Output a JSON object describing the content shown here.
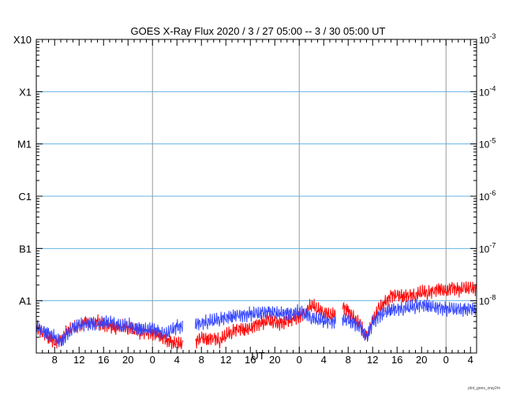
{
  "chart_data": {
    "type": "line",
    "title": "GOES X-Ray Flux   2020 / 3 / 27   05:00 --  3 / 30   05:00   UT",
    "xlabel": "UT",
    "x_tick_labels": [
      "8",
      "12",
      "16",
      "20",
      "0",
      "4",
      "8",
      "12",
      "16",
      "20",
      "0",
      "4",
      "8",
      "12",
      "16",
      "20",
      "0",
      "4"
    ],
    "x_tick_hours": [
      8,
      12,
      16,
      20,
      24,
      28,
      32,
      36,
      40,
      44,
      48,
      52,
      56,
      60,
      64,
      68,
      72,
      76
    ],
    "x_range_hours": [
      5,
      77
    ],
    "day_boundaries_hours": [
      24,
      48,
      72
    ],
    "y_scale": "log",
    "y_range": [
      1e-09,
      0.001
    ],
    "left_axis_labels": [
      {
        "label": "A1",
        "value": 1e-08
      },
      {
        "label": "B1",
        "value": 1e-07
      },
      {
        "label": "C1",
        "value": 1e-06
      },
      {
        "label": "M1",
        "value": 1e-05
      },
      {
        "label": "X1",
        "value": 0.0001
      },
      {
        "label": "X10",
        "value": 0.001
      }
    ],
    "right_axis_labels": [
      {
        "base": "10",
        "exp": "-8",
        "value": 1e-08
      },
      {
        "base": "10",
        "exp": "-7",
        "value": 1e-07
      },
      {
        "base": "10",
        "exp": "-6",
        "value": 1e-06
      },
      {
        "base": "10",
        "exp": "-5",
        "value": 1e-05
      },
      {
        "base": "10",
        "exp": "-4",
        "value": 0.0001
      },
      {
        "base": "10",
        "exp": "-3",
        "value": 0.001
      }
    ],
    "class_gridlines": [
      1e-08,
      1e-07,
      1e-06,
      1e-05,
      0.0001
    ],
    "series": [
      {
        "color": "#ff0000",
        "x_hours": [
          5,
          6,
          7,
          8,
          9,
          10,
          11,
          12,
          13,
          14,
          15,
          16,
          17,
          18,
          19,
          20,
          21,
          22,
          23,
          24,
          25,
          26,
          27,
          28,
          29,
          30,
          31,
          32,
          33,
          34,
          35,
          36,
          37,
          38,
          39,
          40,
          41,
          42,
          43,
          44,
          45,
          46,
          47,
          48,
          49,
          50,
          51,
          52,
          53,
          54,
          55,
          56,
          57,
          58,
          59,
          60,
          61,
          62,
          63,
          64,
          65,
          66,
          67,
          68,
          69,
          70,
          71,
          72,
          73,
          74,
          75,
          76
        ],
        "y": [
          3e-09,
          2.5e-09,
          2e-09,
          1.6e-09,
          1.8e-09,
          2.5e-09,
          3e-09,
          3.2e-09,
          3.8e-09,
          3.5e-09,
          4e-09,
          3.6e-09,
          3.2e-09,
          3e-09,
          3.4e-09,
          3e-09,
          2.8e-09,
          2.5e-09,
          2.6e-09,
          2.4e-09,
          2.2e-09,
          1.8e-09,
          1.6e-09,
          1.5e-09,
          null,
          null,
          1.6e-09,
          2e-09,
          1.8e-09,
          2e-09,
          1.7e-09,
          2.2e-09,
          2.6e-09,
          3e-09,
          2.8e-09,
          3e-09,
          3.5e-09,
          3.8e-09,
          4e-09,
          3.8e-09,
          3.6e-09,
          4e-09,
          4.5e-09,
          5e-09,
          6e-09,
          8.5e-09,
          7e-09,
          6e-09,
          5.5e-09,
          null,
          8e-09,
          6.5e-09,
          4.5e-09,
          3.5e-09,
          2e-09,
          4e-09,
          7e-09,
          9e-09,
          1.25e-08,
          1.3e-08,
          1.2e-08,
          1.3e-08,
          1.25e-08,
          1.5e-08,
          1.4e-08,
          1.6e-08,
          1.7e-08,
          1.5e-08,
          1.8e-08,
          1.6e-08,
          1.7e-08,
          1.7e-08
        ]
      },
      {
        "color": "#3344ff",
        "x_hours": [
          5,
          6,
          7,
          8,
          9,
          10,
          11,
          12,
          13,
          14,
          15,
          16,
          17,
          18,
          19,
          20,
          21,
          22,
          23,
          24,
          25,
          26,
          27,
          28,
          29,
          30,
          31,
          32,
          33,
          34,
          35,
          36,
          37,
          38,
          39,
          40,
          41,
          42,
          43,
          44,
          45,
          46,
          47,
          48,
          49,
          50,
          51,
          52,
          53,
          54,
          55,
          56,
          57,
          58,
          59,
          60,
          61,
          62,
          63,
          64,
          65,
          66,
          67,
          68,
          69,
          70,
          71,
          72,
          73,
          74,
          75,
          76
        ],
        "y": [
          3.2e-09,
          2.8e-09,
          2.4e-09,
          2e-09,
          1.5e-09,
          2.2e-09,
          3e-09,
          3.4e-09,
          3.6e-09,
          3.8e-09,
          3.5e-09,
          3.8e-09,
          4e-09,
          3.6e-09,
          3.2e-09,
          3.5e-09,
          3.2e-09,
          3e-09,
          2.8e-09,
          3e-09,
          2.5e-09,
          2.2e-09,
          2.6e-09,
          3.2e-09,
          null,
          null,
          3.6e-09,
          3.8e-09,
          4e-09,
          4.2e-09,
          4.5e-09,
          4.8e-09,
          5e-09,
          5.4e-09,
          5.2e-09,
          5.6e-09,
          5.5e-09,
          5.8e-09,
          6e-09,
          5.8e-09,
          5.6e-09,
          5.8e-09,
          6e-09,
          6.2e-09,
          5.5e-09,
          4.8e-09,
          4.4e-09,
          4.2e-09,
          4e-09,
          null,
          4.5e-09,
          4.2e-09,
          3.6e-09,
          3e-09,
          1.8e-09,
          3.8e-09,
          5e-09,
          6e-09,
          6.8e-09,
          7e-09,
          7.2e-09,
          7.6e-09,
          7.8e-09,
          8.5e-09,
          8e-09,
          7.6e-09,
          7.2e-09,
          7e-09,
          6.8e-09,
          6.6e-09,
          6.8e-09,
          6.9e-09
        ]
      }
    ],
    "footer": "plot_goes_xray2m"
  }
}
